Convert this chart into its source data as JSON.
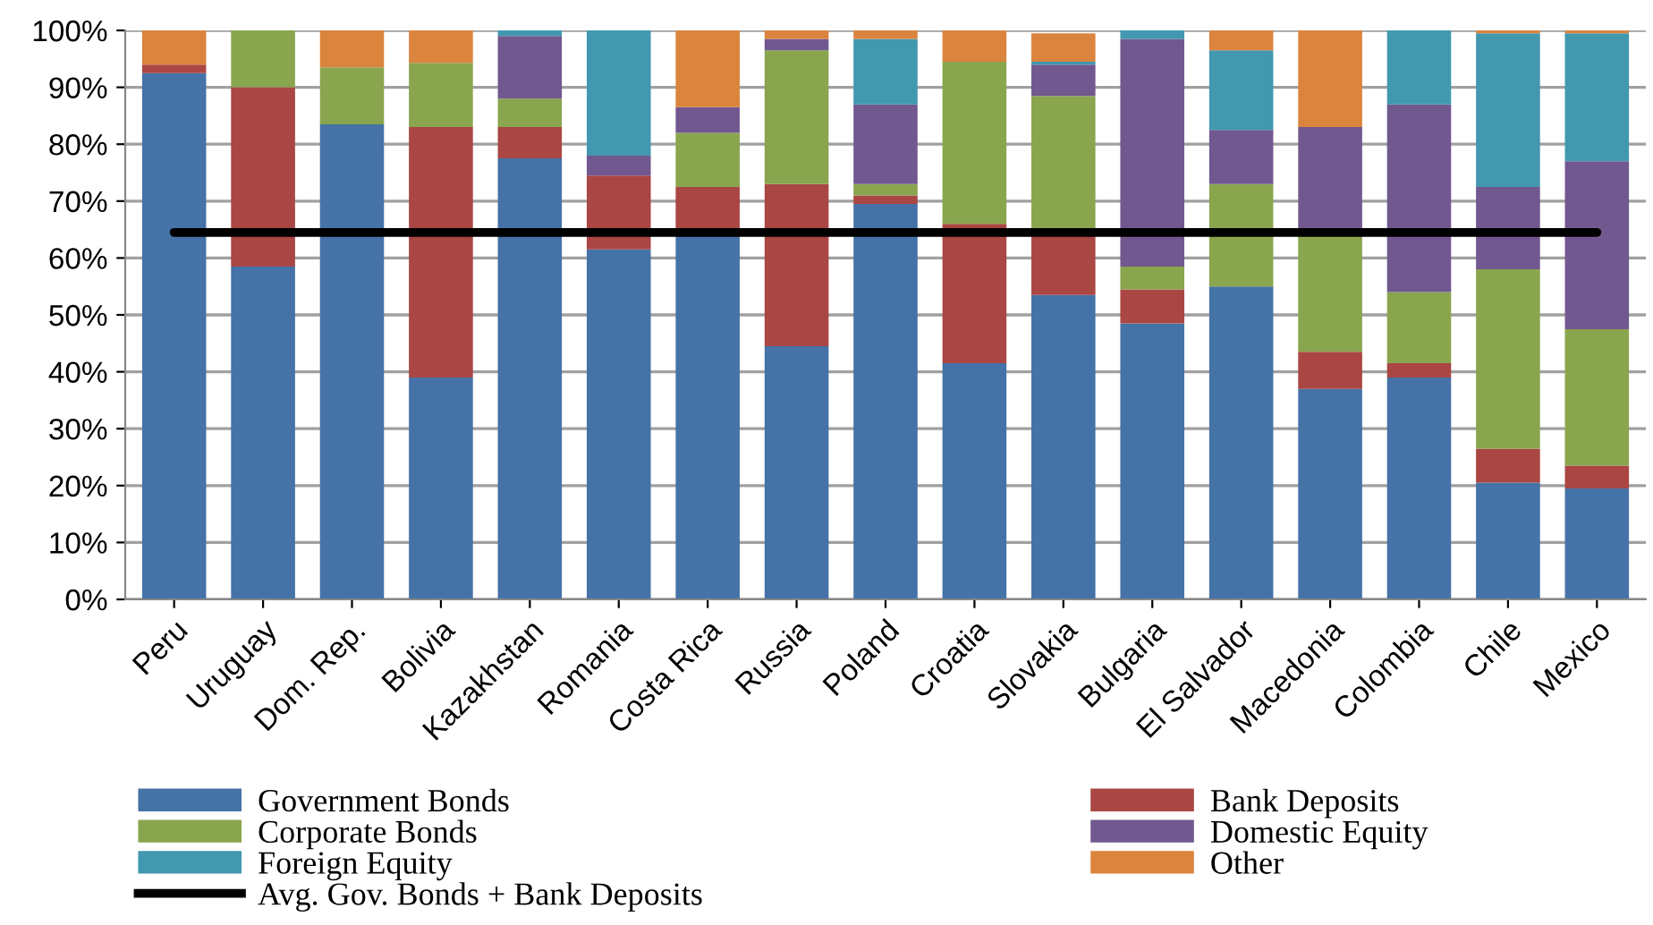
{
  "chart_data": {
    "type": "bar",
    "stacked": true,
    "categories": [
      "Peru",
      "Uruguay",
      "Dom. Rep.",
      "Bolivia",
      "Kazakhstan",
      "Romania",
      "Costa Rica",
      "Russia",
      "Poland",
      "Croatia",
      "Slovakia",
      "Bulgaria",
      "El Salvador",
      "Macedonia",
      "Colombia",
      "Chile",
      "Mexico"
    ],
    "series": [
      {
        "name": "Government Bonds",
        "color": "#4572a7",
        "values": [
          92.5,
          58.5,
          83.5,
          39,
          77.5,
          61.5,
          64,
          44.5,
          69.5,
          41.5,
          53.5,
          48.5,
          55,
          37,
          39,
          20.5,
          19.5
        ]
      },
      {
        "name": "Bank Deposits",
        "color": "#aa4643",
        "values": [
          1.5,
          31.5,
          0,
          44,
          5.5,
          13,
          8.5,
          28.5,
          1.5,
          24.5,
          10.5,
          6,
          0,
          6.5,
          2.5,
          6,
          4
        ]
      },
      {
        "name": "Corporate Bonds",
        "color": "#89a54e",
        "values": [
          0,
          10,
          10,
          11.3,
          5,
          0,
          9.5,
          23.5,
          2,
          28.5,
          24.5,
          4,
          18,
          20.5,
          12.5,
          31.5,
          24
        ]
      },
      {
        "name": "Domestic Equity",
        "color": "#71588f",
        "values": [
          0,
          0,
          0,
          0,
          11,
          3.5,
          4.5,
          2,
          14,
          0,
          5.5,
          40,
          9.5,
          19,
          33,
          14.5,
          29.5
        ]
      },
      {
        "name": "Foreign Equity",
        "color": "#4198af",
        "values": [
          0,
          0,
          0,
          0,
          1,
          22,
          0,
          0,
          11.5,
          0,
          0.5,
          1.5,
          14,
          0,
          13,
          27,
          22.5
        ]
      },
      {
        "name": "Other",
        "color": "#db843d",
        "values": [
          6,
          0,
          6.5,
          5.7,
          0,
          0,
          13.5,
          1.5,
          1.5,
          5.5,
          5,
          0,
          3.5,
          17,
          0,
          0.5,
          0.5
        ]
      },
      {
        "name": "Avg. Gov. Bonds + Bank Deposits",
        "type": "line",
        "color": "#000000",
        "values": [
          64.5,
          64.5,
          64.5,
          64.5,
          64.5,
          64.5,
          64.5,
          64.5,
          64.5,
          64.5,
          64.5,
          64.5,
          64.5,
          64.5,
          64.5,
          64.5,
          64.5
        ]
      }
    ],
    "ylim": [
      0,
      100
    ],
    "yticks": [
      {
        "value": 0,
        "label": "0%"
      },
      {
        "value": 10,
        "label": "10%"
      },
      {
        "value": 20,
        "label": "20%"
      },
      {
        "value": 30,
        "label": "30%"
      },
      {
        "value": 40,
        "label": "40%"
      },
      {
        "value": 50,
        "label": "50%"
      },
      {
        "value": 60,
        "label": "60%"
      },
      {
        "value": 70,
        "label": "70%"
      },
      {
        "value": 80,
        "label": "80%"
      },
      {
        "value": 90,
        "label": "90%"
      },
      {
        "value": 100,
        "label": "100%"
      }
    ],
    "grid": "y",
    "legend": "bottom"
  }
}
